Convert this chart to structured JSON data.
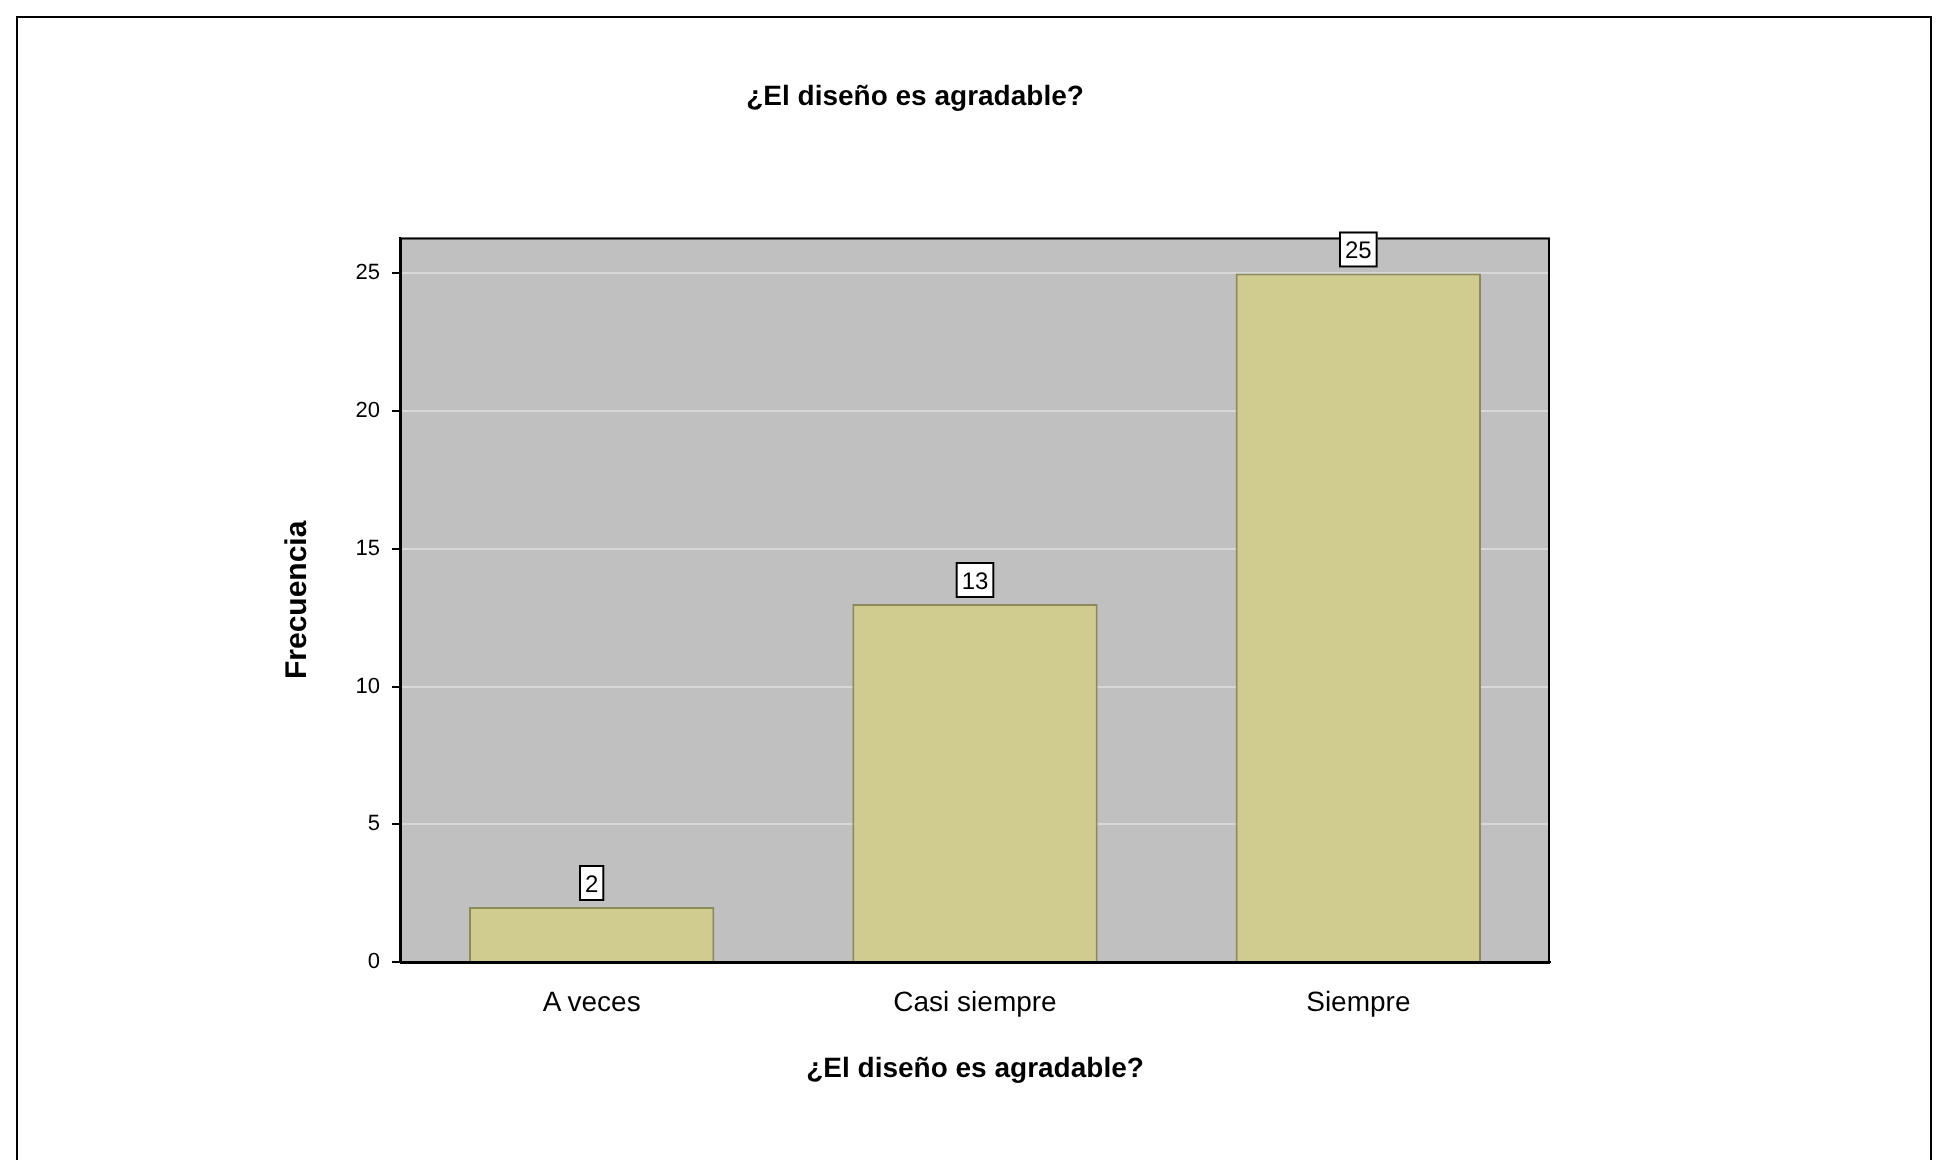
{
  "chart_data": {
    "type": "bar",
    "title": "¿El diseño es agradable?",
    "xlabel": "¿El diseño es agradable?",
    "ylabel": "Frecuencia",
    "categories": [
      "A veces",
      "Casi siempre",
      "Siempre"
    ],
    "values": [
      2,
      13,
      25
    ],
    "color": "#d0cb8f",
    "ylim": [
      0,
      26.3
    ],
    "yticks": [
      0,
      5,
      10,
      15,
      20,
      25
    ],
    "grid": "y",
    "data_labels": true
  }
}
